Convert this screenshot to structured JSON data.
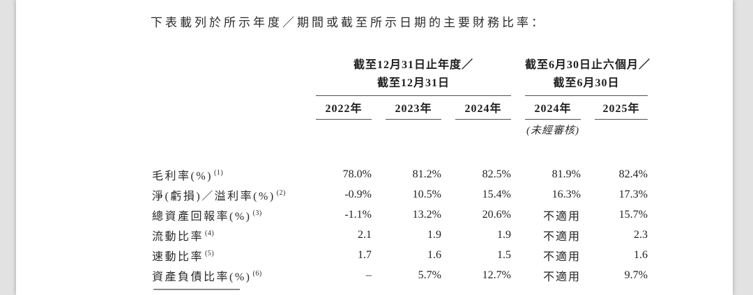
{
  "page": {
    "intro_text": "下表載列於所示年度／期間或截至所示日期的主要財務比率：",
    "table": {
      "col_groups": [
        {
          "line1": "截至12月31日止年度／",
          "line2": "截至12月31日"
        },
        {
          "line1": "截至6月30日止六個月／",
          "line2": "截至6月30日"
        }
      ],
      "year_headers": [
        "2022年",
        "2023年",
        "2024年",
        "2024年",
        "2025年"
      ],
      "unaudited_note": "(未經審核)",
      "rows": [
        {
          "label": "毛利率(%)",
          "note": "(1)",
          "values": [
            "78.0%",
            "81.2%",
            "82.5%",
            "81.9%",
            "82.4%"
          ]
        },
        {
          "label": "淨(虧損)／溢利率(%)",
          "note": "(2)",
          "values": [
            "-0.9%",
            "10.5%",
            "15.4%",
            "16.3%",
            "17.3%"
          ]
        },
        {
          "label": "總資產回報率(%)",
          "note": "(3)",
          "values": [
            "-1.1%",
            "13.2%",
            "20.6%",
            "不適用",
            "15.7%"
          ]
        },
        {
          "label": "流動比率",
          "note": "(4)",
          "values": [
            "2.1",
            "1.9",
            "1.9",
            "不適用",
            "2.3"
          ]
        },
        {
          "label": "速動比率",
          "note": "(5)",
          "values": [
            "1.7",
            "1.6",
            "1.5",
            "不適用",
            "1.6"
          ]
        },
        {
          "label": "資產負債比率(%)",
          "note": "(6)",
          "values": [
            "–",
            "5.7%",
            "12.7%",
            "不適用",
            "9.7%"
          ]
        }
      ]
    },
    "colors": {
      "canvas_bg": "#e2e2e2",
      "page_bg": "#ffffff",
      "text": "#242424",
      "rule": "#4d4d4d",
      "footnote_rule": "#8a8a8a"
    }
  }
}
